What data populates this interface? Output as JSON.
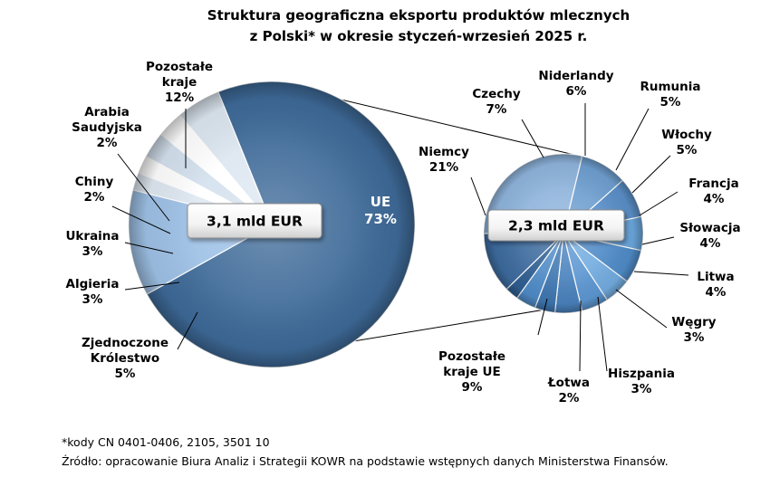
{
  "title_line1": "Struktura geograficzna eksportu produktów mlecznych",
  "title_line2": "z Polski* w okresie styczeń-wrzesień 2025 r.",
  "footnote": "*kody CN 0401-0406, 2105, 3501 10",
  "source": "Źródło: opracowanie Biura Analiz i Strategii KOWR na podstawie wstępnych danych Ministerstwa Finansów.",
  "chart_data": [
    {
      "type": "pie",
      "total_label": "3,1 mld EUR",
      "unit": "%",
      "slices": [
        {
          "label": [
            "UE"
          ],
          "value": 73,
          "color": "#3e6a98"
        },
        {
          "label": [
            "Pozostałe",
            "kraje"
          ],
          "value": 12,
          "color": "#9ec1e6"
        },
        {
          "label": [
            "Arabia",
            "Saudyjska"
          ],
          "value": 2,
          "color": "#dfe8f2"
        },
        {
          "label": [
            "Chiny"
          ],
          "value": 2,
          "color": "#ffffff"
        },
        {
          "label": [
            "Ukraina"
          ],
          "value": 3,
          "color": "#d4e1ee"
        },
        {
          "label": [
            "Algieria"
          ],
          "value": 3,
          "color": "#ffffff"
        },
        {
          "label": [
            "Zjednoczone",
            "Królestwo"
          ],
          "value": 5,
          "color": "#dde7f1"
        }
      ]
    },
    {
      "type": "pie",
      "total_label": "2,3 mld EUR",
      "unit": "%",
      "slices": [
        {
          "label": [
            "Niemcy"
          ],
          "value": 21,
          "color": "#8fb4dc"
        },
        {
          "label": [
            "Czechy"
          ],
          "value": 7,
          "color": "#6f9fd0"
        },
        {
          "label": [
            "Niderlandy"
          ],
          "value": 6,
          "color": "#5a8fc8"
        },
        {
          "label": [
            "Rumunia"
          ],
          "value": 5,
          "color": "#6aa6dc"
        },
        {
          "label": [
            "Włochy"
          ],
          "value": 5,
          "color": "#4f8bc7"
        },
        {
          "label": [
            "Francja"
          ],
          "value": 4,
          "color": "#73ace0"
        },
        {
          "label": [
            "Słowacja"
          ],
          "value": 4,
          "color": "#5d97d2"
        },
        {
          "label": [
            "Litwa"
          ],
          "value": 4,
          "color": "#4a82bd"
        },
        {
          "label": [
            "Węgry"
          ],
          "value": 3,
          "color": "#3f77b1"
        },
        {
          "label": [
            "Hiszpania"
          ],
          "value": 3,
          "color": "#4f8bc7"
        },
        {
          "label": [
            "Łotwa"
          ],
          "value": 2,
          "color": "#2f5e91"
        },
        {
          "label": [
            "Pozostałe",
            "kraje UE"
          ],
          "value": 9,
          "color": "#3d6b9e"
        }
      ]
    }
  ]
}
